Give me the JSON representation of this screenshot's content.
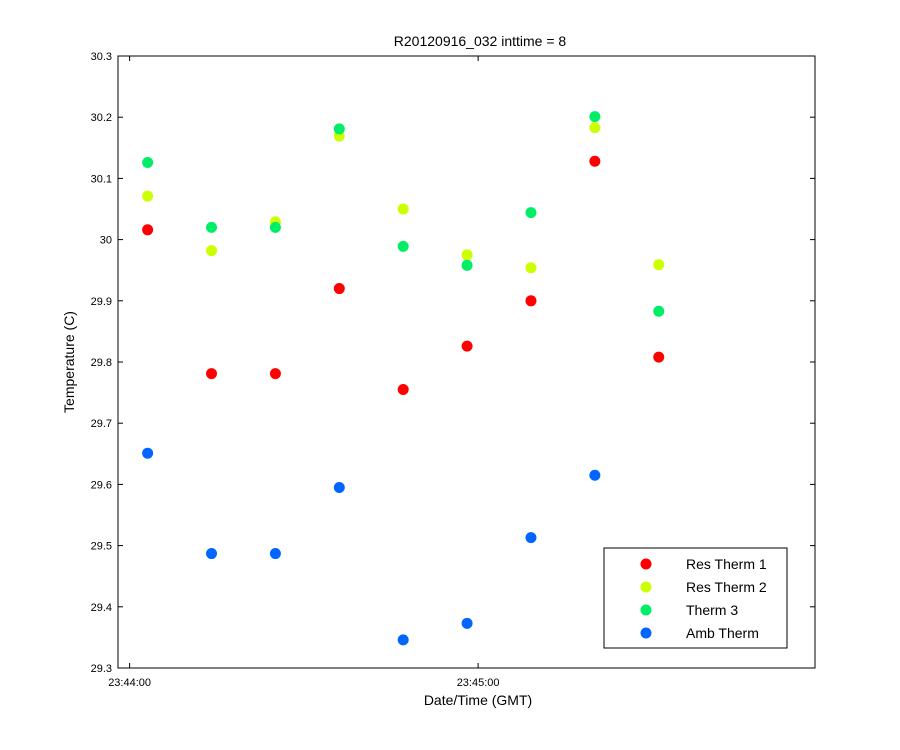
{
  "chart_data": {
    "type": "scatter",
    "title": "R20120916_032 inttime = 8",
    "xlabel": "Date/Time (GMT)",
    "ylabel": "Temperature (C)",
    "x_ticks": [
      "23:44:00",
      "23:45:00"
    ],
    "x_tick_seconds": [
      0,
      60
    ],
    "xlim_seconds": [
      -2,
      118
    ],
    "ylim": [
      29.3,
      30.3
    ],
    "y_ticks": [
      29.3,
      29.4,
      29.5,
      29.6,
      29.7,
      29.8,
      29.9,
      30.0,
      30.1,
      30.2,
      30.3
    ],
    "y_tick_labels": [
      "29.3",
      "29.4",
      "29.5",
      "29.6",
      "29.7",
      "29.8",
      "29.9",
      "30",
      "30.1",
      "30.2",
      "30.3"
    ],
    "x_seconds": [
      3.1,
      14.1,
      25.1,
      36.1,
      47.1,
      58.1,
      69.1,
      80.1,
      91.1
    ],
    "legend_position": "bottom-right",
    "grid": false,
    "series": [
      {
        "name": "Res Therm 1",
        "color": "#ff0000",
        "values": [
          30.016,
          29.781,
          29.781,
          29.92,
          29.755,
          29.826,
          29.9,
          30.128,
          29.808
        ]
      },
      {
        "name": "Res Therm 2",
        "color": "#ccff00",
        "values": [
          30.071,
          29.982,
          30.029,
          30.169,
          30.05,
          29.975,
          29.954,
          30.183,
          29.959
        ]
      },
      {
        "name": "Therm 3",
        "color": "#00ee66",
        "values": [
          30.126,
          30.02,
          30.02,
          30.181,
          29.989,
          29.958,
          30.044,
          30.201,
          29.883
        ]
      },
      {
        "name": "Amb Therm",
        "color": "#0066ff",
        "values": [
          29.651,
          29.487,
          29.487,
          29.595,
          29.346,
          29.373,
          29.513,
          29.615,
          null
        ]
      }
    ]
  }
}
